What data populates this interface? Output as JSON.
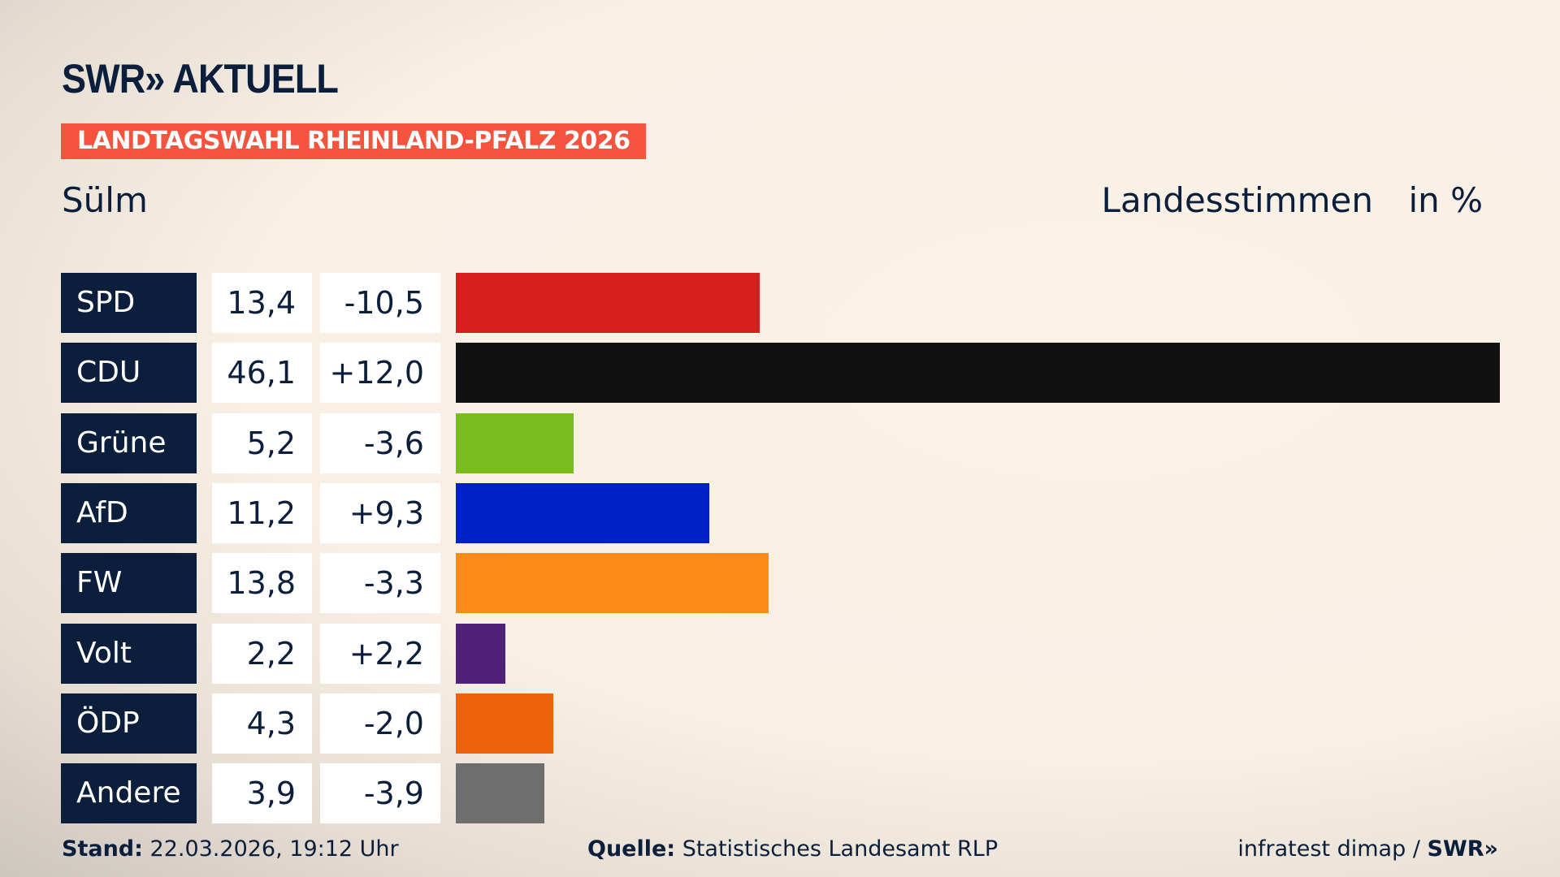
{
  "header": {
    "logo": "SWR» AKTUELL",
    "banner": "LANDTAGSWAHL RHEINLAND-PFALZ 2026",
    "place": "Sülm",
    "measure": "Landesstimmen",
    "unit": "in %"
  },
  "chart_data": {
    "type": "bar",
    "orientation": "horizontal",
    "xlim": [
      0,
      46.1
    ],
    "categories": [
      "SPD",
      "CDU",
      "Grüne",
      "AfD",
      "FW",
      "Volt",
      "ÖDP",
      "Andere"
    ],
    "values": [
      13.4,
      46.1,
      5.2,
      11.2,
      13.8,
      2.2,
      4.3,
      3.9
    ],
    "value_labels": [
      "13,4",
      "46,1",
      "5,2",
      "11,2",
      "13,8",
      "2,2",
      "4,3",
      "3,9"
    ],
    "diff_labels": [
      "-10,5",
      "+12,0",
      "-3,6",
      "+9,3",
      "-3,3",
      "+2,2",
      "-2,0",
      "-3,9"
    ],
    "colors": [
      "#d71f1f",
      "#111111",
      "#79bc1e",
      "#0021c8",
      "#fd8b17",
      "#512177",
      "#eb6209",
      "#6e6e6e"
    ]
  },
  "footer": {
    "stand_label": "Stand:",
    "stand": "22.03.2026, 19:12 Uhr",
    "source_label": "Quelle:",
    "source": "Statistisches Landesamt RLP",
    "credit": "infratest dimap /",
    "credit_logo": "SWR»"
  }
}
